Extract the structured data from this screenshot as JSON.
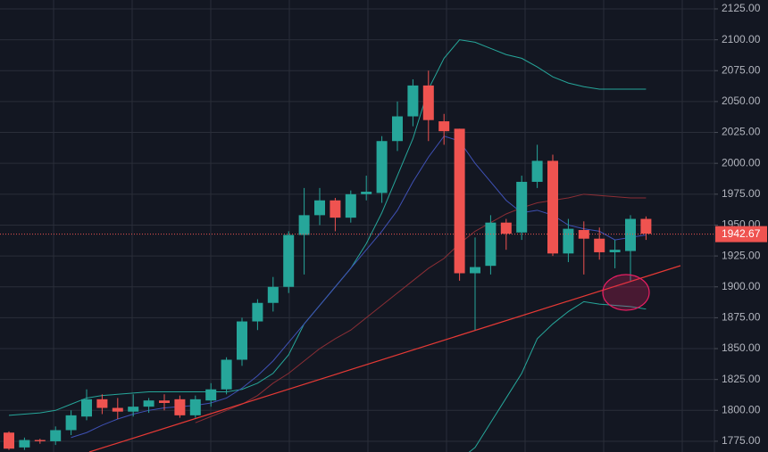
{
  "chart_data": {
    "type": "candlestick",
    "up_color": "#26a69a",
    "down_color": "#ef5350",
    "open": [
      1782,
      1770,
      1776,
      1775,
      1784,
      1795,
      1809,
      1802,
      1799,
      1803,
      1808,
      1809,
      1796,
      1808,
      1817,
      1841,
      1872,
      1887,
      1900,
      1942,
      1958,
      1970,
      1956,
      1975,
      1976,
      2018,
      2038,
      2063,
      2034,
      2028,
      1911,
      1917,
      1952,
      1944,
      1985,
      2002,
      1927,
      1946,
      1939,
      1928,
      1929,
      1955
    ],
    "high": [
      1783,
      1778,
      1777,
      1787,
      1800,
      1817,
      1813,
      1810,
      1813,
      1810,
      1813,
      1812,
      1812,
      1822,
      1843,
      1875,
      1890,
      1908,
      1945,
      1980,
      1980,
      1972,
      1978,
      1990,
      2022,
      2050,
      2068,
      2075,
      2040,
      2028,
      1940,
      1958,
      1955,
      1990,
      2015,
      2007,
      1955,
      1953,
      1948,
      1938,
      1958,
      1957
    ],
    "low": [
      1768,
      1768,
      1773,
      1772,
      1780,
      1792,
      1797,
      1793,
      1795,
      1798,
      1800,
      1794,
      1794,
      1803,
      1813,
      1836,
      1865,
      1880,
      1895,
      1910,
      1950,
      1945,
      1952,
      1970,
      1968,
      2010,
      2030,
      2018,
      2015,
      1905,
      1865,
      1910,
      1930,
      1938,
      1980,
      1925,
      1920,
      1910,
      1922,
      1915,
      1905,
      1938
    ],
    "close": [
      1769,
      1776,
      1775,
      1784,
      1796,
      1809,
      1802,
      1799,
      1803,
      1808,
      1806,
      1796,
      1809,
      1817,
      1841,
      1872,
      1887,
      1900,
      1942,
      1958,
      1970,
      1956,
      1975,
      1977,
      2018,
      2038,
      2063,
      2035,
      2026,
      1911,
      1916,
      1952,
      1943,
      1985,
      2002,
      1927,
      1947,
      1939,
      1928,
      1930,
      1955,
      1943
    ],
    "overlays": [
      {
        "color": "#26a69a",
        "values": [
          1796,
          1797,
          1798,
          1800,
          1805,
          1810,
          1812,
          1813,
          1814,
          1815,
          1815,
          1815,
          1815,
          1815,
          1815,
          1817,
          1822,
          1830,
          1845,
          1870,
          1885,
          1900,
          1915,
          1935,
          1960,
          1990,
          2020,
          2060,
          2085,
          2100,
          2098,
          2093,
          2088,
          2085,
          2078,
          2070,
          2065,
          2062,
          2060,
          2060,
          2060,
          2060
        ]
      },
      {
        "color": "#26a69a",
        "values": [
          null,
          null,
          null,
          null,
          null,
          null,
          null,
          null,
          null,
          null,
          null,
          null,
          null,
          null,
          null,
          null,
          null,
          null,
          null,
          null,
          null,
          null,
          null,
          null,
          null,
          null,
          null,
          null,
          null,
          1760,
          1770,
          1790,
          1810,
          1830,
          1858,
          1870,
          1880,
          1888,
          1886,
          1885,
          1884,
          1882
        ]
      },
      {
        "color": "#3f51b5",
        "values": [
          null,
          null,
          null,
          null,
          1778,
          1782,
          1788,
          1793,
          1797,
          1800,
          1802,
          1803,
          1804,
          1806,
          1810,
          1818,
          1828,
          1840,
          1855,
          1870,
          1885,
          1900,
          1915,
          1930,
          1945,
          1962,
          1985,
          2005,
          2022,
          2018,
          2000,
          1985,
          1970,
          1960,
          1962,
          1958,
          1950,
          1947,
          1945,
          1938,
          1940,
          1942
        ]
      },
      {
        "color": "#8b2e35",
        "values": [
          null,
          null,
          null,
          null,
          null,
          null,
          null,
          null,
          null,
          null,
          null,
          null,
          1790,
          1795,
          1800,
          1805,
          1812,
          1822,
          1830,
          1840,
          1850,
          1858,
          1865,
          1875,
          1885,
          1895,
          1905,
          1915,
          1923,
          1935,
          1945,
          1952,
          1959,
          1964,
          1968,
          1970,
          1972,
          1975,
          1974,
          1973,
          1972,
          1972
        ]
      }
    ],
    "ylim": [
      1766.3,
      2132.2
    ],
    "yticks": [
      {
        "value": 1775,
        "label": "1775.00"
      },
      {
        "value": 1800,
        "label": "1800.00"
      },
      {
        "value": 1825,
        "label": "1825.00"
      },
      {
        "value": 1850,
        "label": "1850.00"
      },
      {
        "value": 1875,
        "label": "1875.00"
      },
      {
        "value": 1900,
        "label": "1900.00"
      },
      {
        "value": 1925,
        "label": "1925.00"
      },
      {
        "value": 1950,
        "label": "1950.00"
      },
      {
        "value": 1975,
        "label": "1975.00"
      },
      {
        "value": 2000,
        "label": "2000.00"
      },
      {
        "value": 2025,
        "label": "2025.00"
      },
      {
        "value": 2050,
        "label": "2050.00"
      },
      {
        "value": 2075,
        "label": "2075.00"
      },
      {
        "value": 2100,
        "label": "2100.00"
      },
      {
        "value": 2125,
        "label": "2125.00"
      }
    ],
    "grid": true,
    "last_price": 1942.67
  }
}
